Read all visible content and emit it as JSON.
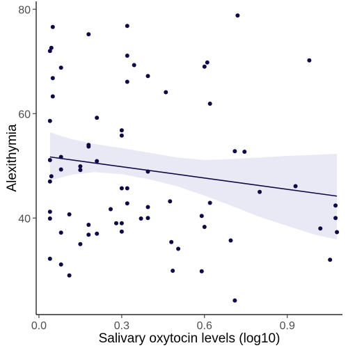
{
  "chart_data": {
    "type": "scatter",
    "title": "",
    "xlabel": "Salivary oxytocin levels (log10)",
    "ylabel": "Alexithymia",
    "xlim": [
      -0.01,
      1.1
    ],
    "ylim": [
      21.5,
      81.5
    ],
    "x_ticks": [
      0.0,
      0.3,
      0.6,
      0.9
    ],
    "x_tick_labels": [
      "0.0",
      "0.3",
      "0.6",
      "0.9"
    ],
    "y_ticks": [
      40,
      60,
      80
    ],
    "y_tick_labels": [
      "40",
      "60",
      "80"
    ],
    "grid": false,
    "legend": "none",
    "colors": {
      "points": "#0d0a45",
      "line": "#0d0a45",
      "band": "#e8e9f4"
    },
    "points": [
      [
        0.04,
        72
      ],
      [
        0.045,
        72.6
      ],
      [
        0.05,
        76.6
      ],
      [
        0.05,
        66.8
      ],
      [
        0.05,
        63.3
      ],
      [
        0.04,
        58.6
      ],
      [
        0.04,
        51.1
      ],
      [
        0.045,
        48
      ],
      [
        0.04,
        47
      ],
      [
        0.04,
        41.2
      ],
      [
        0.04,
        39.9
      ],
      [
        0.04,
        32.2
      ],
      [
        0.08,
        68.8
      ],
      [
        0.08,
        51.7
      ],
      [
        0.08,
        49.3
      ],
      [
        0.08,
        37.2
      ],
      [
        0.08,
        31.1
      ],
      [
        0.11,
        40.7
      ],
      [
        0.11,
        29
      ],
      [
        0.15,
        49.9
      ],
      [
        0.15,
        49.2
      ],
      [
        0.15,
        35
      ],
      [
        0.18,
        75.2
      ],
      [
        0.18,
        54
      ],
      [
        0.18,
        53.7
      ],
      [
        0.18,
        38.7
      ],
      [
        0.18,
        36.8
      ],
      [
        0.21,
        59.2
      ],
      [
        0.21,
        50.9
      ],
      [
        0.21,
        37
      ],
      [
        0.26,
        41.7
      ],
      [
        0.28,
        39
      ],
      [
        0.3,
        56.8
      ],
      [
        0.3,
        55.8
      ],
      [
        0.3,
        45.7
      ],
      [
        0.3,
        39
      ],
      [
        0.3,
        37.4
      ],
      [
        0.32,
        76.8
      ],
      [
        0.32,
        71.1
      ],
      [
        0.32,
        66.1
      ],
      [
        0.32,
        45.7
      ],
      [
        0.32,
        42.8
      ],
      [
        0.345,
        69.3
      ],
      [
        0.37,
        39.9
      ],
      [
        0.395,
        67.2
      ],
      [
        0.395,
        48.9
      ],
      [
        0.395,
        42.1
      ],
      [
        0.395,
        40
      ],
      [
        0.46,
        64.1
      ],
      [
        0.475,
        43.2
      ],
      [
        0.48,
        35.4
      ],
      [
        0.485,
        29.9
      ],
      [
        0.505,
        34.1
      ],
      [
        0.59,
        40.4
      ],
      [
        0.59,
        29.8
      ],
      [
        0.6,
        69
      ],
      [
        0.6,
        38.3
      ],
      [
        0.61,
        69.8
      ],
      [
        0.62,
        61.9
      ],
      [
        0.62,
        42.9
      ],
      [
        0.695,
        35.7
      ],
      [
        0.71,
        24.2
      ],
      [
        0.71,
        52.8
      ],
      [
        0.72,
        78.8
      ],
      [
        0.745,
        52.7
      ],
      [
        0.8,
        45
      ],
      [
        0.93,
        46.1
      ],
      [
        0.98,
        70.2
      ],
      [
        1.02,
        38
      ],
      [
        1.055,
        32
      ],
      [
        1.075,
        42.4
      ],
      [
        1.075,
        40
      ],
      [
        1.08,
        37.3
      ]
    ],
    "trend_line": {
      "x": [
        0.04,
        1.08
      ],
      "y": [
        51.7,
        44.2
      ]
    },
    "confidence_band": {
      "x": [
        0.04,
        0.12,
        0.2,
        0.3,
        0.4,
        0.5,
        0.6,
        0.7,
        0.8,
        0.9,
        1.0,
        1.08
      ],
      "lower": [
        47.2,
        48.3,
        48.8,
        48.4,
        47.4,
        46.1,
        44.3,
        42.3,
        40.2,
        38.5,
        36.8,
        35.9
      ],
      "upper": [
        56.4,
        55.1,
        54.2,
        53.4,
        52.5,
        51.6,
        51.1,
        51.3,
        51.6,
        51.9,
        52.1,
        52.3
      ]
    }
  }
}
